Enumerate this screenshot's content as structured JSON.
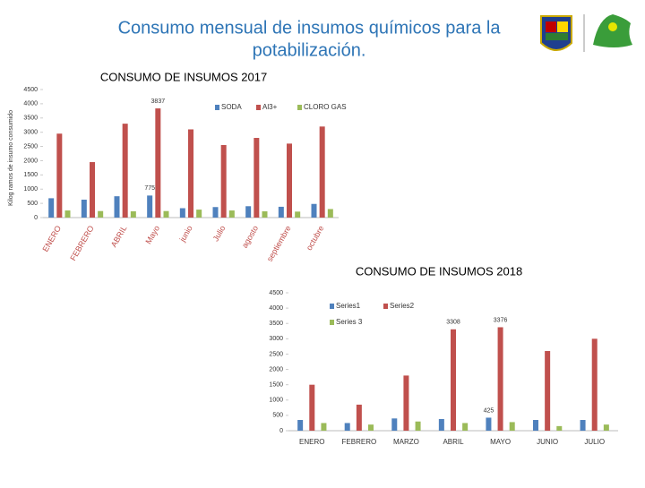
{
  "slide_title": [
    "Consumo mensual de insumos químicos para la",
    "potabilización."
  ],
  "chart_data": [
    {
      "type": "bar",
      "title": "CONSUMO DE INSUMOS 2017",
      "y_label": "Kilog ramos de insumo consumido",
      "categories": [
        "ENERO",
        "FEBRERO",
        "ABRIL",
        "Mayo",
        "junio",
        "Julio",
        "agosto",
        "septiembre",
        "octubre"
      ],
      "series": [
        {
          "name": "SODA",
          "color": "#4f81bd",
          "values": [
            680,
            630,
            750,
            775,
            330,
            370,
            400,
            380,
            480
          ],
          "value_labels": [
            null,
            null,
            null,
            "775",
            null,
            null,
            null,
            null,
            null
          ]
        },
        {
          "name": "Al3+",
          "color": "#c0504d",
          "values": [
            2950,
            1950,
            3300,
            3837,
            3100,
            2550,
            2800,
            2600,
            3200
          ],
          "value_labels": [
            null,
            null,
            null,
            "3837",
            null,
            null,
            null,
            null,
            null
          ]
        },
        {
          "name": "CLORO GAS",
          "color": "#9bbb59",
          "values": [
            250,
            230,
            220,
            230,
            280,
            250,
            220,
            210,
            300
          ]
        }
      ],
      "ylim": [
        0,
        4500
      ],
      "yticks": [
        0,
        500,
        1000,
        1500,
        2000,
        2500,
        3000,
        3500,
        4000,
        4500
      ],
      "grid": false
    },
    {
      "type": "bar",
      "title": "CONSUMO DE INSUMOS 2018",
      "categories": [
        "ENERO",
        "FEBRERO",
        "MARZO",
        "ABRIL",
        "MAYO",
        "JUNIO",
        "JULIO"
      ],
      "series": [
        {
          "name": "Series1",
          "color": "#4f81bd",
          "values": [
            350,
            250,
            400,
            380,
            425,
            350,
            350
          ],
          "value_labels": [
            null,
            null,
            null,
            null,
            "425",
            null,
            null
          ]
        },
        {
          "name": "Series2",
          "color": "#c0504d",
          "values": [
            1500,
            850,
            1800,
            3308,
            3376,
            2600,
            3000
          ],
          "value_labels": [
            null,
            null,
            null,
            "3308",
            "3376",
            null,
            null
          ]
        },
        {
          "name": "Series 3",
          "color": "#9bbb59",
          "values": [
            250,
            200,
            300,
            250,
            280,
            150,
            200
          ]
        }
      ],
      "ylim": [
        0,
        4500
      ],
      "yticks": [
        0,
        500,
        1000,
        1500,
        2000,
        2500,
        3000,
        3500,
        4000,
        4500
      ],
      "grid": false
    }
  ]
}
